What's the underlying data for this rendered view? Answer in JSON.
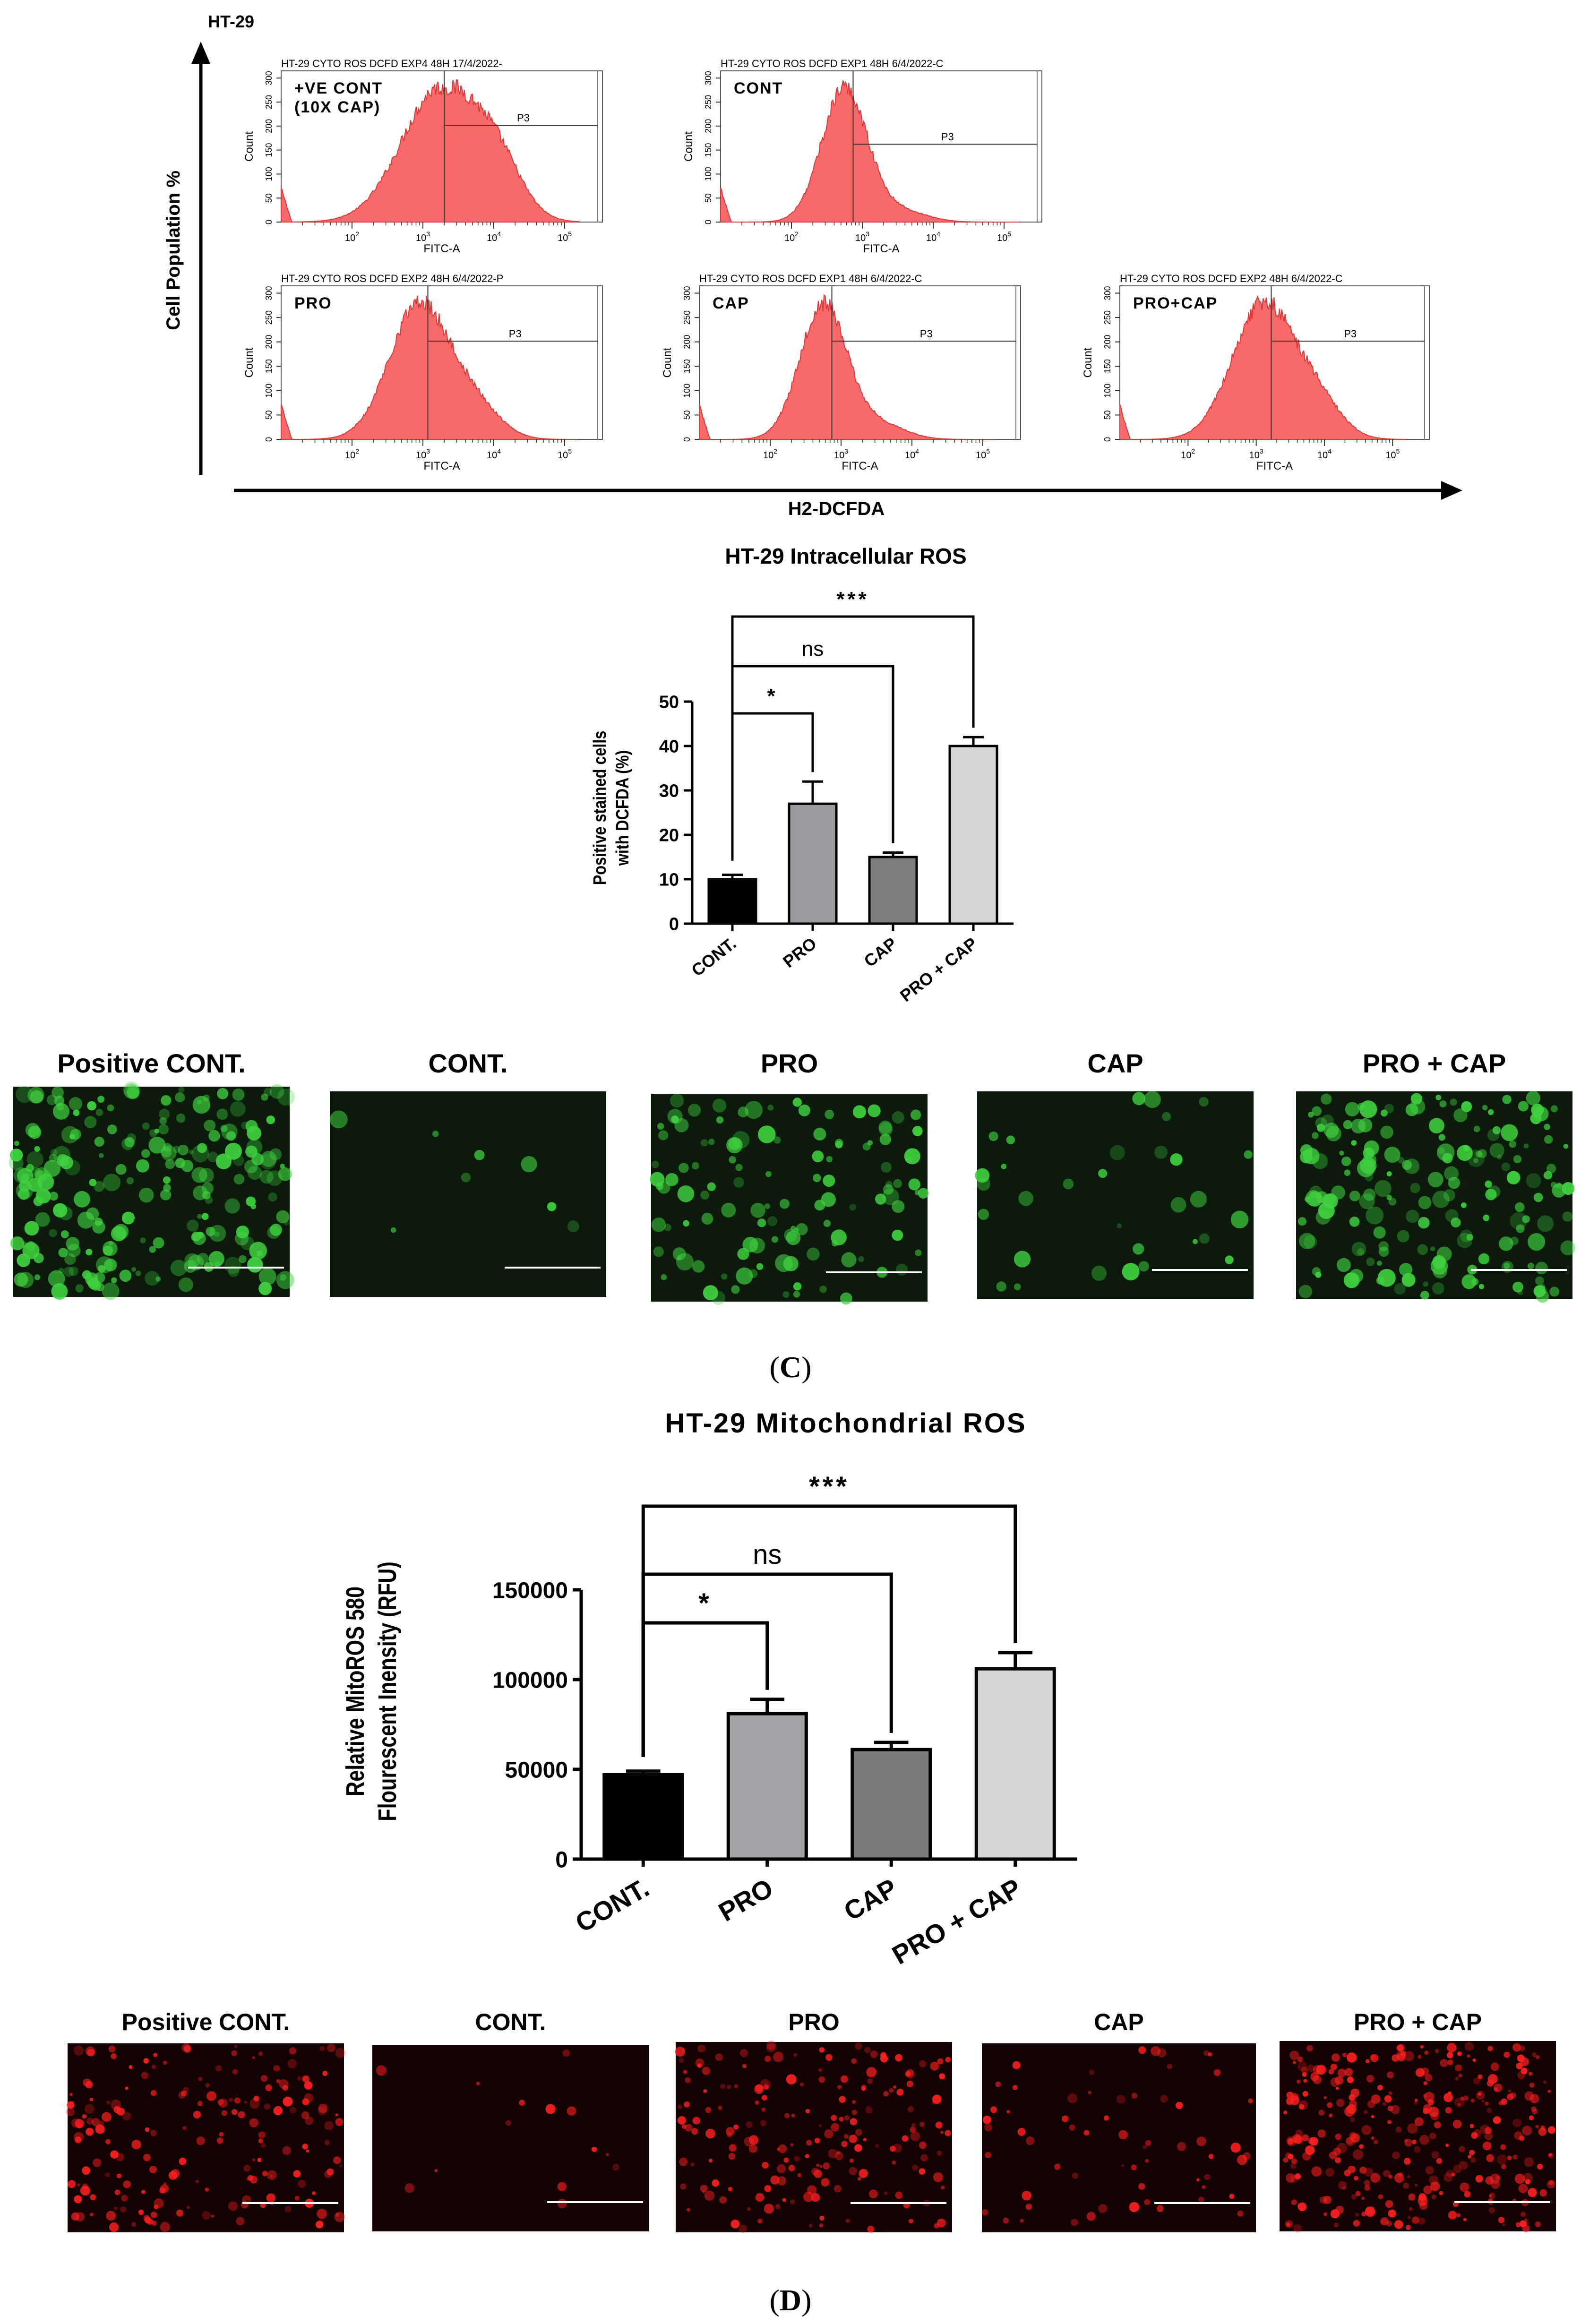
{
  "flow": {
    "cell_line": "HT-29",
    "y_axis_label": "Cell Population %",
    "x_axis_label": "H2-DCFDA",
    "panels": [
      {
        "header": "HT-29 CYTO ROS DCFD EXP4 48H 17/4/2022-",
        "label_line1": "+VE CONT",
        "label_line2": "(10X CAP)",
        "gate": "P3",
        "xlabel": "FITC-A",
        "ylabel": "Count",
        "peak_decade": 3.25,
        "spread": 0.55,
        "tail": 0.6
      },
      {
        "header": "HT-29 CYTO ROS DCFD EXP1 48H 6/4/2022-C",
        "label_line1": "CONT",
        "label_line2": "",
        "gate": "P3",
        "xlabel": "FITC-A",
        "ylabel": "Count",
        "peak_decade": 2.75,
        "spread": 0.32,
        "tail": 0.15
      },
      {
        "header": "HT-29 CYTO ROS DCFD EXP2 48H 6/4/2022-P",
        "label_line1": "PRO",
        "label_line2": "",
        "gate": "P3",
        "xlabel": "FITC-A",
        "ylabel": "Count",
        "peak_decade": 2.95,
        "spread": 0.42,
        "tail": 0.4
      },
      {
        "header": "HT-29 CYTO ROS DCFD EXP1 48H 6/4/2022-C",
        "label_line1": "CAP",
        "label_line2": "",
        "gate": "P3",
        "xlabel": "FITC-A",
        "ylabel": "Count",
        "peak_decade": 2.75,
        "spread": 0.33,
        "tail": 0.2
      },
      {
        "header": "HT-29 CYTO ROS DCFD EXP2 48H 6/4/2022-C",
        "label_line1": "PRO+CAP",
        "label_line2": "",
        "gate": "P3",
        "xlabel": "FITC-A",
        "ylabel": "Count",
        "peak_decade": 3.1,
        "spread": 0.45,
        "tail": 0.45
      }
    ]
  },
  "chart_data": [
    {
      "type": "bar",
      "title": "HT-29 Intracellular ROS",
      "ylabel_line1": "Positive stained cells",
      "ylabel_line2": "with DCFDA (%)",
      "categories": [
        "CONT.",
        "PRO",
        "CAP",
        "PRO + CAP"
      ],
      "values": [
        10,
        27,
        15,
        40
      ],
      "errors": [
        1,
        5,
        1,
        2
      ],
      "ylim": [
        0,
        50
      ],
      "yticks": [
        0,
        10,
        20,
        30,
        40,
        50
      ],
      "bar_colors": [
        "#000000",
        "#9a9a9f",
        "#7d7d7d",
        "#d4d4d4"
      ],
      "significance": [
        {
          "label": "*",
          "from": "CONT.",
          "to": "PRO"
        },
        {
          "label": "ns",
          "from": "CONT.",
          "to": "CAP"
        },
        {
          "label": "***",
          "from": "CONT.",
          "to": "PRO + CAP"
        }
      ]
    },
    {
      "type": "bar",
      "title": "HT-29 Mitochondrial ROS",
      "ylabel_line1": "Relative MitoROS 580",
      "ylabel_line2": "Flourescent Inensity (RFU)",
      "categories": [
        "CONT.",
        "PRO",
        "CAP",
        "PRO + CAP"
      ],
      "values": [
        47000,
        81000,
        61000,
        106000
      ],
      "errors": [
        2000,
        8000,
        4000,
        9000
      ],
      "ylim": [
        0,
        150000
      ],
      "yticks": [
        0,
        50000,
        100000,
        150000
      ],
      "bar_colors": [
        "#000000",
        "#a3a3a8",
        "#7c7c7c",
        "#d4d4d4"
      ],
      "significance": [
        {
          "label": "*",
          "from": "CONT.",
          "to": "PRO"
        },
        {
          "label": "ns",
          "from": "CONT.",
          "to": "CAP"
        },
        {
          "label": "***",
          "from": "CONT.",
          "to": "PRO + CAP"
        }
      ]
    }
  ],
  "green_images": {
    "labels": [
      "Positive CONT.",
      "CONT.",
      "PRO",
      "CAP",
      "PRO + CAP"
    ],
    "density": [
      0.9,
      0.03,
      0.45,
      0.12,
      0.7
    ],
    "color": "#3fd23f"
  },
  "red_images": {
    "labels": [
      "Positive CONT.",
      "CONT.",
      "PRO",
      "CAP",
      "PRO + CAP"
    ],
    "density": [
      0.55,
      0.04,
      0.55,
      0.18,
      0.95
    ],
    "color": "#ff2020"
  },
  "panel_labels": {
    "c_open": "(",
    "c_letter": "C",
    "c_close": ")",
    "d_open": "(",
    "d_letter": "D",
    "d_close": ")"
  },
  "colors": {
    "histogram_fill": "#f86a6a",
    "histogram_edge": "#e03535"
  }
}
